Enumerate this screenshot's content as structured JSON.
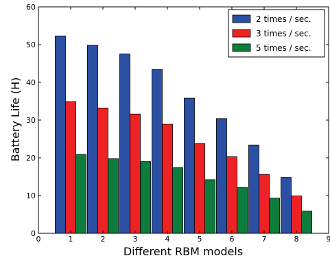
{
  "chart_data": {
    "type": "bar",
    "title": "",
    "xlabel": "Different RBM models",
    "ylabel": "Battery Life (H)",
    "categories": [
      "1",
      "2",
      "3",
      "4",
      "5",
      "6",
      "7",
      "8"
    ],
    "series": [
      {
        "name": "2 times / sec.",
        "color": "#2a4fa3",
        "values": [
          52.3,
          49.8,
          47.5,
          43.4,
          35.8,
          30.4,
          23.4,
          14.8
        ]
      },
      {
        "name": "3 times / sec.",
        "color": "#ee2225",
        "values": [
          34.9,
          33.2,
          31.6,
          28.9,
          23.8,
          20.3,
          15.6,
          9.9
        ]
      },
      {
        "name": "5 times / sec.",
        "color": "#0e7c3a",
        "values": [
          20.9,
          19.8,
          19.0,
          17.4,
          14.2,
          12.1,
          9.3,
          5.9
        ]
      }
    ],
    "xlim": [
      0,
      9
    ],
    "ylim": [
      0,
      60
    ],
    "xticks": [
      "0",
      "1",
      "2",
      "3",
      "4",
      "5",
      "6",
      "7",
      "8",
      "9"
    ],
    "yticks": [
      "0",
      "10",
      "20",
      "30",
      "40",
      "50",
      "60"
    ],
    "legend": "top-right",
    "grid": false
  }
}
